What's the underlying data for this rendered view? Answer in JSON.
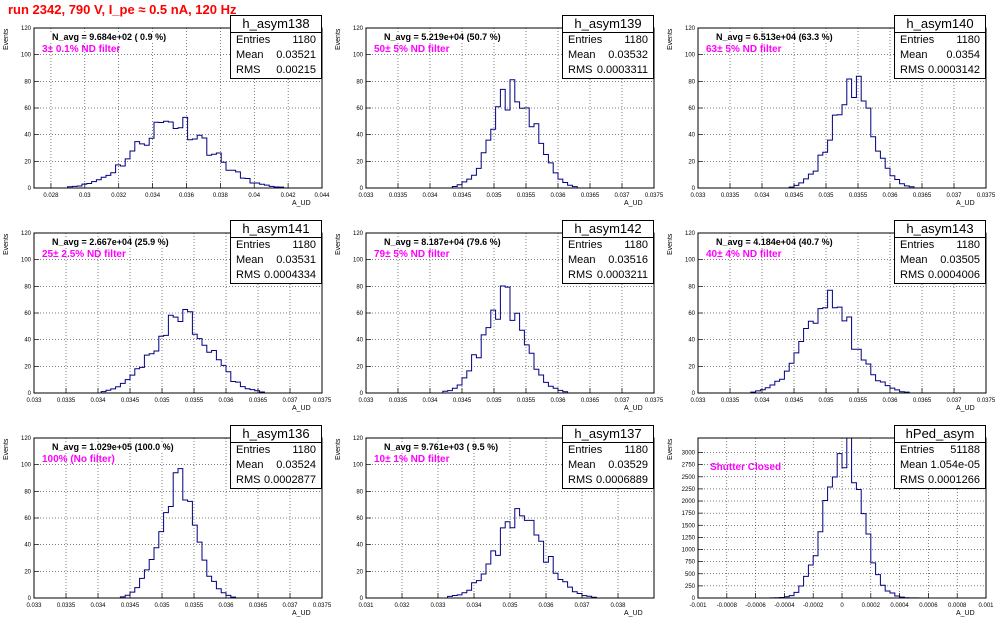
{
  "page_title": "run 2342,   790 V, I_pe ≈ 0.5 nA, 120 Hz",
  "axis_titles": {
    "x": "A_UD",
    "y": "Events"
  },
  "chart_data": [
    {
      "type": "histogram",
      "name": "h_asym138",
      "stats": {
        "entries": "1180",
        "mean": "0.03521",
        "rms": "0.00215"
      },
      "n_avg_label": "N_avg = 9.684e+02 ( 0.9 %)",
      "filter_label": "3± 0.1% ND filter",
      "xlim": [
        0.027,
        0.044
      ],
      "ylim": [
        0,
        120
      ],
      "xticks": [
        0.028,
        0.03,
        0.032,
        0.034,
        0.036,
        0.038,
        0.04,
        0.042,
        0.044
      ],
      "xtick_labels": [
        "0.028",
        "0.03",
        "0.032",
        "0.034",
        "0.036",
        "0.038",
        "0.04",
        "0.042",
        "0.044"
      ],
      "yticks": [
        0,
        20,
        40,
        60,
        80,
        100,
        120
      ],
      "mean": 0.03521,
      "rms": 0.00215,
      "peak": 50,
      "seed": 11
    },
    {
      "type": "histogram",
      "name": "h_asym139",
      "stats": {
        "entries": "1180",
        "mean": "0.03532",
        "rms": "0.0003311"
      },
      "n_avg_label": "N_avg = 5.219e+04 (50.7 %)",
      "filter_label": "50± 5% ND filter",
      "xlim": [
        0.033,
        0.0375
      ],
      "ylim": [
        0,
        120
      ],
      "xticks": [
        0.033,
        0.0335,
        0.034,
        0.0345,
        0.035,
        0.0355,
        0.036,
        0.0365,
        0.037,
        0.0375
      ],
      "xtick_labels": [
        "0.033",
        "0.0335",
        "0.034",
        "0.0345",
        "0.035",
        "0.0355",
        "0.036",
        "0.0365",
        "0.037",
        "0.0375"
      ],
      "yticks": [
        0,
        20,
        40,
        60,
        80,
        100,
        120
      ],
      "mean": 0.03532,
      "rms": 0.0003311,
      "peak": 73,
      "seed": 23
    },
    {
      "type": "histogram",
      "name": "h_asym140",
      "stats": {
        "entries": "1180",
        "mean": "0.0354",
        "rms": "0.0003142"
      },
      "n_avg_label": "N_avg = 6.513e+04 (63.3 %)",
      "filter_label": "63± 5% ND filter",
      "xlim": [
        0.033,
        0.0375
      ],
      "ylim": [
        0,
        120
      ],
      "xticks": [
        0.033,
        0.0335,
        0.034,
        0.0345,
        0.035,
        0.0355,
        0.036,
        0.0365,
        0.037,
        0.0375
      ],
      "xtick_labels": [
        "0.033",
        "0.0335",
        "0.034",
        "0.0345",
        "0.035",
        "0.0355",
        "0.036",
        "0.0365",
        "0.037",
        "0.0375"
      ],
      "yticks": [
        0,
        20,
        40,
        60,
        80,
        100,
        120
      ],
      "mean": 0.0354,
      "rms": 0.0003142,
      "peak": 75,
      "seed": 37
    },
    {
      "type": "histogram",
      "name": "h_asym141",
      "stats": {
        "entries": "1180",
        "mean": "0.03531",
        "rms": "0.0004334"
      },
      "n_avg_label": "N_avg = 2.667e+04 (25.9 %)",
      "filter_label": "25± 2.5% ND filter",
      "xlim": [
        0.033,
        0.0375
      ],
      "ylim": [
        0,
        120
      ],
      "xticks": [
        0.033,
        0.0335,
        0.034,
        0.0345,
        0.035,
        0.0355,
        0.036,
        0.0365,
        0.037,
        0.0375
      ],
      "xtick_labels": [
        "0.033",
        "0.0335",
        "0.034",
        "0.0345",
        "0.035",
        "0.0355",
        "0.036",
        "0.0365",
        "0.037",
        "0.0375"
      ],
      "yticks": [
        0,
        20,
        40,
        60,
        80,
        100,
        120
      ],
      "mean": 0.03531,
      "rms": 0.0004334,
      "peak": 58,
      "seed": 41
    },
    {
      "type": "histogram",
      "name": "h_asym142",
      "stats": {
        "entries": "1180",
        "mean": "0.03516",
        "rms": "0.0003211"
      },
      "n_avg_label": "N_avg = 8.187e+04 (79.6 %)",
      "filter_label": "79± 5% ND filter",
      "xlim": [
        0.033,
        0.0375
      ],
      "ylim": [
        0,
        120
      ],
      "xticks": [
        0.033,
        0.0335,
        0.034,
        0.0345,
        0.035,
        0.0355,
        0.036,
        0.0365,
        0.037,
        0.0375
      ],
      "xtick_labels": [
        "0.033",
        "0.0335",
        "0.034",
        "0.0345",
        "0.035",
        "0.0355",
        "0.036",
        "0.0365",
        "0.037",
        "0.0375"
      ],
      "yticks": [
        0,
        20,
        40,
        60,
        80,
        100,
        120
      ],
      "mean": 0.03516,
      "rms": 0.0003211,
      "peak": 71,
      "seed": 53
    },
    {
      "type": "histogram",
      "name": "h_asym143",
      "stats": {
        "entries": "1180",
        "mean": "0.03505",
        "rms": "0.0004006"
      },
      "n_avg_label": "N_avg = 4.184e+04 (40.7 %)",
      "filter_label": "40± 4% ND filter",
      "xlim": [
        0.033,
        0.0375
      ],
      "ylim": [
        0,
        120
      ],
      "xticks": [
        0.033,
        0.0335,
        0.034,
        0.0345,
        0.035,
        0.0355,
        0.036,
        0.0365,
        0.037,
        0.0375
      ],
      "xtick_labels": [
        "0.033",
        "0.0335",
        "0.034",
        "0.0345",
        "0.035",
        "0.0355",
        "0.036",
        "0.0365",
        "0.037",
        "0.0375"
      ],
      "yticks": [
        0,
        20,
        40,
        60,
        80,
        100,
        120
      ],
      "mean": 0.03505,
      "rms": 0.0004006,
      "peak": 65,
      "seed": 67
    },
    {
      "type": "histogram",
      "name": "h_asym136",
      "stats": {
        "entries": "1180",
        "mean": "0.03524",
        "rms": "0.0002877"
      },
      "n_avg_label": "N_avg = 1.029e+05 (100.0 %)",
      "filter_label": "100% (No filter)",
      "xlim": [
        0.033,
        0.0375
      ],
      "ylim": [
        0,
        120
      ],
      "xticks": [
        0.033,
        0.0335,
        0.034,
        0.0345,
        0.035,
        0.0355,
        0.036,
        0.0365,
        0.037,
        0.0375
      ],
      "xtick_labels": [
        "0.033",
        "0.0335",
        "0.034",
        "0.0345",
        "0.035",
        "0.0355",
        "0.036",
        "0.0365",
        "0.037",
        "0.0375"
      ],
      "yticks": [
        0,
        20,
        40,
        60,
        80,
        100,
        120
      ],
      "mean": 0.03524,
      "rms": 0.0002877,
      "peak": 82,
      "seed": 71
    },
    {
      "type": "histogram",
      "name": "h_asym137",
      "stats": {
        "entries": "1180",
        "mean": "0.03529",
        "rms": "0.0006889"
      },
      "n_avg_label": "N_avg = 9.761e+03 ( 9.5 %)",
      "filter_label": "10± 1% ND filter",
      "xlim": [
        0.031,
        0.039
      ],
      "ylim": [
        0,
        120
      ],
      "xticks": [
        0.031,
        0.032,
        0.033,
        0.034,
        0.035,
        0.036,
        0.037,
        0.038
      ],
      "xtick_labels": [
        "0.031",
        "0.032",
        "0.033",
        "0.034",
        "0.035",
        "0.036",
        "0.037",
        "0.038"
      ],
      "yticks": [
        0,
        20,
        40,
        60,
        80,
        100,
        120
      ],
      "mean": 0.03529,
      "rms": 0.0006889,
      "peak": 57,
      "seed": 83
    },
    {
      "type": "histogram",
      "name": "hPed_asym",
      "stats": {
        "entries": "51188",
        "mean": "1.054e-05",
        "rms": "0.0001266"
      },
      "n_avg_label": "",
      "filter_label": "Shutter Closed",
      "xlim": [
        -0.001,
        0.001
      ],
      "ylim": [
        0,
        3300
      ],
      "xticks": [
        -0.001,
        -0.0008,
        -0.0006,
        -0.0004,
        -0.0002,
        0,
        0.0002,
        0.0004,
        0.0006,
        0.0008,
        0.001
      ],
      "xtick_labels": [
        "-0.001",
        "-0.0008",
        "-0.0006",
        "-0.0004",
        "-0.0002",
        "0",
        "0.0002",
        "0.0004",
        "0.0006",
        "0.0008",
        "0.001"
      ],
      "yticks": [
        0,
        250,
        500,
        750,
        1000,
        1250,
        1500,
        1750,
        2000,
        2250,
        2500,
        2750,
        3000
      ],
      "mean": 1.054e-05,
      "rms": 0.0001266,
      "peak": 3200,
      "seed": 97
    }
  ],
  "colors": {
    "histogram_line": "#000080",
    "filter_text": "#ff00ff",
    "title_text": "#ff0000",
    "grid": "#000000"
  }
}
